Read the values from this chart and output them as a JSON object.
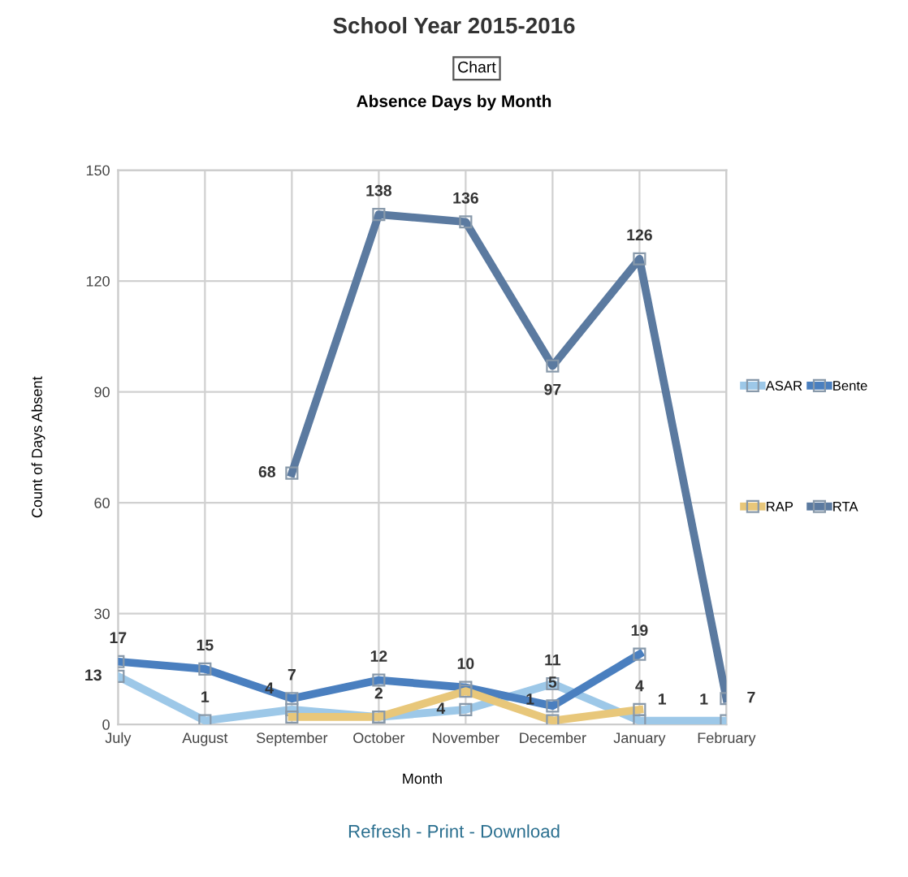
{
  "chart_data": {
    "type": "line",
    "title": "School Year 2015-2016",
    "subtitle": "Absence Days by Month",
    "xlabel": "Month",
    "ylabel": "Count of Days Absent",
    "categories": [
      "July",
      "August",
      "September",
      "October",
      "November",
      "December",
      "January",
      "February"
    ],
    "series": [
      {
        "name": "ASAR",
        "color": "#9dc8e8",
        "values": [
          13,
          1,
          4,
          2,
          4,
          11,
          1,
          1
        ],
        "value_labels": [
          "13",
          "1",
          "4",
          null,
          "4",
          "11",
          "1",
          "1"
        ]
      },
      {
        "name": "Bente",
        "color": "#4a7fbf",
        "values": [
          17,
          15,
          7,
          12,
          10,
          5,
          19,
          null
        ],
        "value_labels": [
          "17",
          "15",
          "7",
          "12",
          "10",
          "5",
          "19",
          null
        ]
      },
      {
        "name": "RAP",
        "color": "#e8c77a",
        "values": [
          null,
          null,
          2,
          2,
          9,
          1,
          4,
          null
        ],
        "value_labels": [
          null,
          null,
          null,
          "2",
          null,
          "1",
          "4",
          null
        ]
      },
      {
        "name": "RTA",
        "color": "#5b7aa0",
        "values": [
          null,
          null,
          68,
          138,
          136,
          97,
          126,
          7
        ],
        "value_labels": [
          null,
          null,
          "68",
          "138",
          "136",
          "97",
          "126",
          "7"
        ]
      }
    ],
    "ylim": [
      0,
      150
    ],
    "yticks": [
      0,
      30,
      60,
      90,
      120,
      150
    ],
    "grid": true,
    "legend": "right",
    "marker": "square",
    "line_style": "solid",
    "annotations": [
      "Chart",
      "Refresh - Print - Download"
    ]
  }
}
